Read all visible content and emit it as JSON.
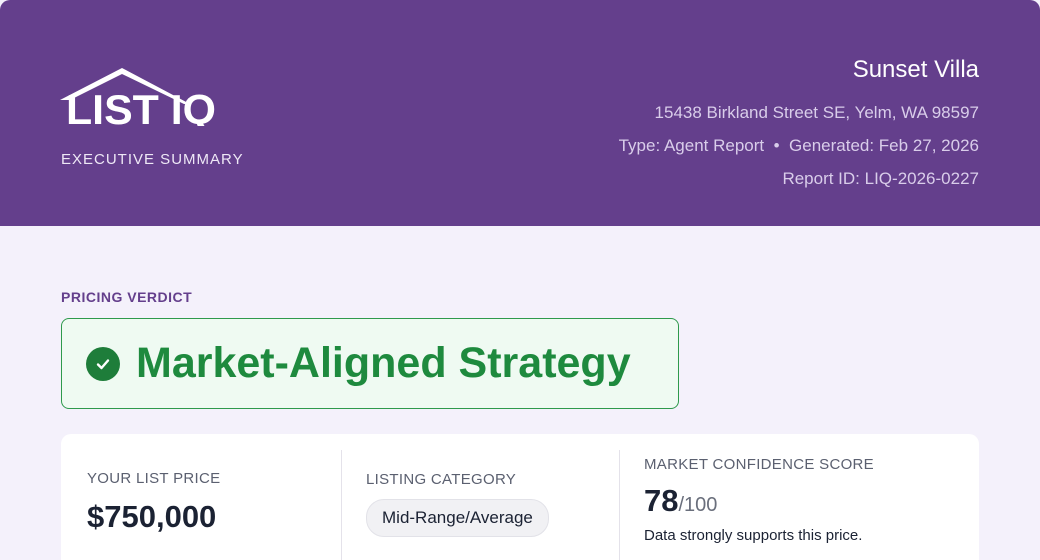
{
  "header": {
    "logo_text": "LIST IQ",
    "subtitle": "EXECUTIVE SUMMARY",
    "property_name": "Sunset Villa",
    "address": "15438 Birkland Street SE, Yelm, WA 98597",
    "type": "Type: Agent Report",
    "separator": "•",
    "generated": "Generated: Feb 27, 2026",
    "report_id": "Report ID: LIQ-2026-0227"
  },
  "verdict": {
    "label": "PRICING VERDICT",
    "text": "Market-Aligned Strategy",
    "icon": "check-circle-icon"
  },
  "summary": {
    "list_price_label": "YOUR LIST PRICE",
    "list_price": "$750,000",
    "category_label": "LISTING CATEGORY",
    "category": "Mid-Range/Average",
    "score_label": "MARKET CONFIDENCE SCORE",
    "score": "78",
    "score_max": "/100",
    "score_note": "Data strongly supports this price."
  },
  "colors": {
    "header": "#643f8c",
    "accent_green": "#1e8a3e",
    "background": "#f4f1fb"
  }
}
